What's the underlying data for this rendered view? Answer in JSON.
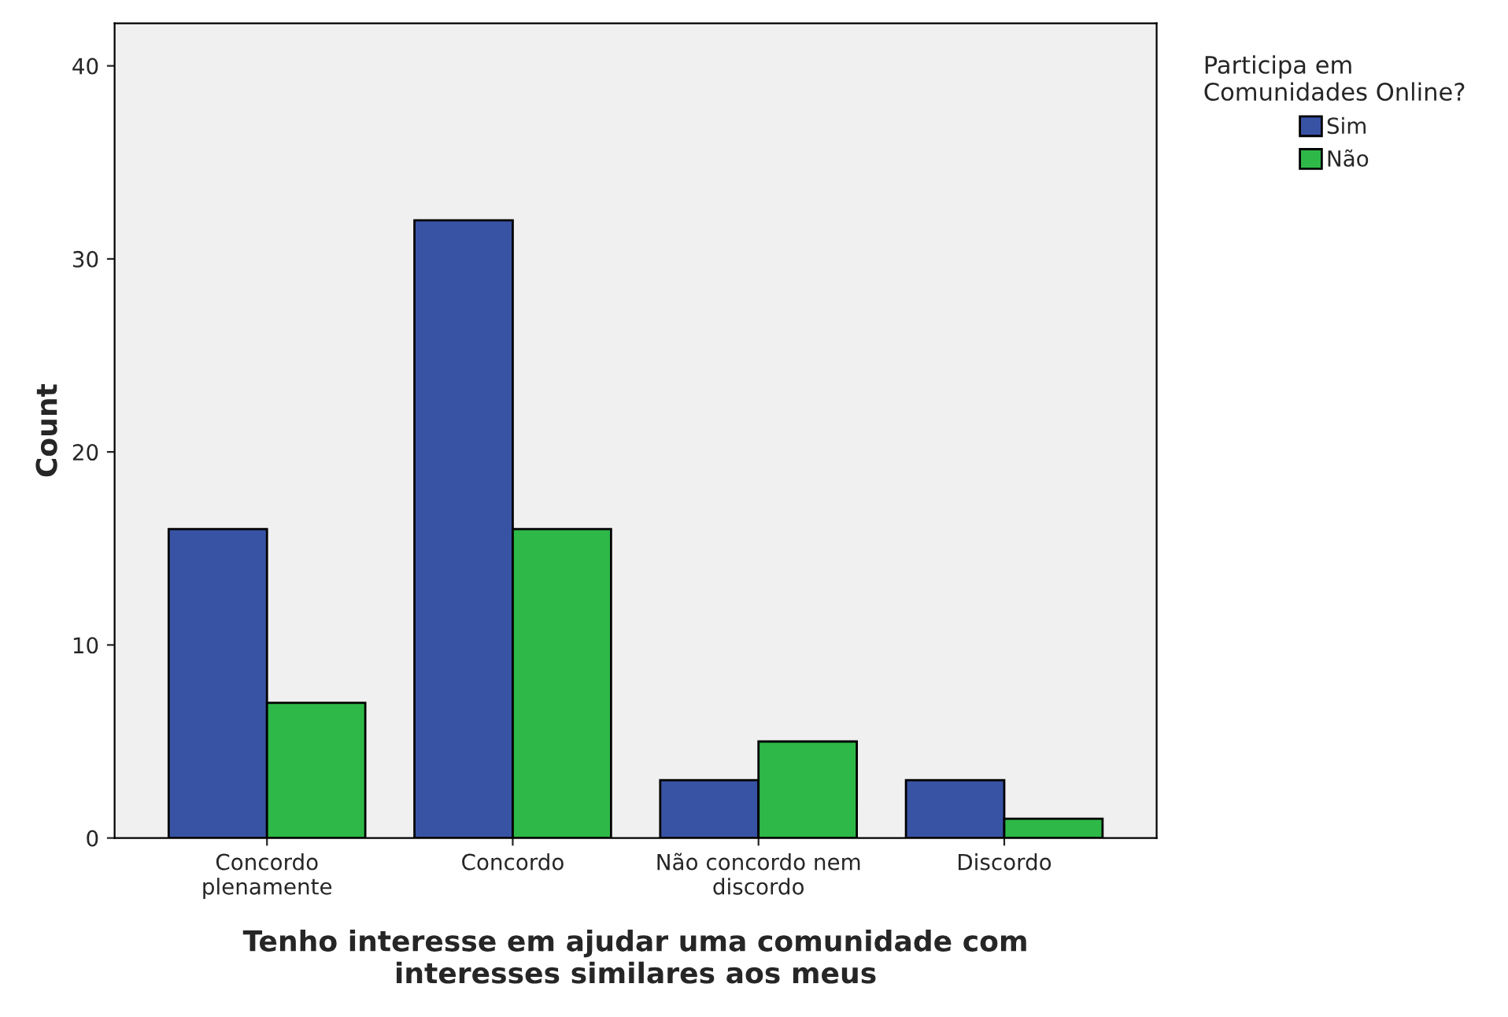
{
  "chart_data": {
    "type": "bar",
    "xlabel": "Tenho interesse em ajudar uma comunidade com\ninteresses similares aos meus",
    "ylabel": "Count",
    "legend_title": "Participa em\nComunidades Online?",
    "categories": [
      "Concordo\nplenamente",
      "Concordo",
      "Não concordo nem\ndiscordo",
      "Discordo"
    ],
    "series": [
      {
        "name": "Sim",
        "color": "#3953a4",
        "values": [
          16,
          32,
          3,
          3
        ]
      },
      {
        "name": "Não",
        "color": "#2eb848",
        "values": [
          7,
          16,
          5,
          1
        ]
      }
    ],
    "ylim": [
      0,
      42.2
    ],
    "yticks": [
      0,
      10,
      20,
      30,
      40
    ],
    "grid": false,
    "legend": "top right"
  }
}
